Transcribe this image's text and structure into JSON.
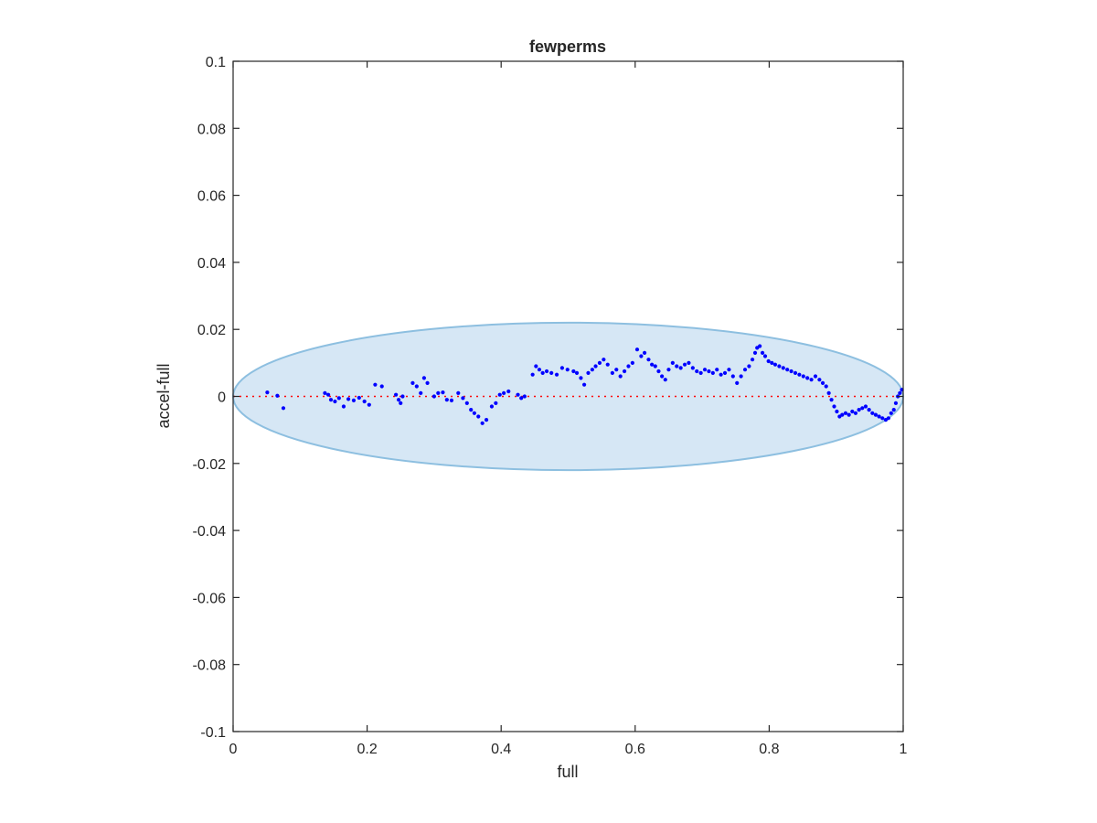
{
  "chart_data": {
    "type": "scatter",
    "title": "fewperms",
    "xlabel": "full",
    "ylabel": "accel-full",
    "xlim": [
      0,
      1
    ],
    "ylim": [
      -0.1,
      0.1
    ],
    "xticks": [
      0,
      0.2,
      0.4,
      0.6,
      0.8,
      1
    ],
    "xtick_labels": [
      "0",
      "0.2",
      "0.4",
      "0.6",
      "0.8",
      "1"
    ],
    "yticks": [
      -0.1,
      -0.08,
      -0.06,
      -0.04,
      -0.02,
      0,
      0.02,
      0.04,
      0.06,
      0.08,
      0.1
    ],
    "ytick_labels": [
      "-0.1",
      "-0.08",
      "-0.06",
      "-0.04",
      "-0.02",
      "0",
      "0.02",
      "0.04",
      "0.06",
      "0.08",
      "0.1"
    ],
    "grid": false,
    "reference_line": {
      "y": 0,
      "color": "#ff0000",
      "style": "dotted"
    },
    "ellipse": {
      "center": [
        0.5,
        0
      ],
      "radius_x": 0.5,
      "radius_y": 0.022,
      "fill": "#d6e7f5",
      "stroke": "#8dbfe0"
    },
    "marker_color": "#0000ff",
    "points": [
      [
        0.051,
        0.0012
      ],
      [
        0.066,
        0.0002
      ],
      [
        0.075,
        -0.0035
      ],
      [
        0.137,
        0.001
      ],
      [
        0.142,
        0.0005
      ],
      [
        0.146,
        -0.001
      ],
      [
        0.152,
        -0.0015
      ],
      [
        0.158,
        -0.0005
      ],
      [
        0.165,
        -0.003
      ],
      [
        0.172,
        -0.0008
      ],
      [
        0.18,
        -0.0012
      ],
      [
        0.188,
        -0.0004
      ],
      [
        0.196,
        -0.0015
      ],
      [
        0.203,
        -0.0025
      ],
      [
        0.212,
        0.0035
      ],
      [
        0.222,
        0.003
      ],
      [
        0.243,
        0.0005
      ],
      [
        0.247,
        -0.001
      ],
      [
        0.25,
        -0.002
      ],
      [
        0.253,
        0.0
      ],
      [
        0.268,
        0.004
      ],
      [
        0.274,
        0.003
      ],
      [
        0.28,
        0.001
      ],
      [
        0.285,
        0.0055
      ],
      [
        0.29,
        0.004
      ],
      [
        0.3,
        0.0
      ],
      [
        0.306,
        0.001
      ],
      [
        0.313,
        0.0012
      ],
      [
        0.319,
        -0.001
      ],
      [
        0.326,
        -0.0012
      ],
      [
        0.336,
        0.001
      ],
      [
        0.343,
        -0.0005
      ],
      [
        0.349,
        -0.002
      ],
      [
        0.355,
        -0.004
      ],
      [
        0.36,
        -0.005
      ],
      [
        0.366,
        -0.006
      ],
      [
        0.372,
        -0.008
      ],
      [
        0.378,
        -0.007
      ],
      [
        0.386,
        -0.003
      ],
      [
        0.392,
        -0.002
      ],
      [
        0.398,
        0.0005
      ],
      [
        0.404,
        0.001
      ],
      [
        0.411,
        0.0015
      ],
      [
        0.425,
        0.0005
      ],
      [
        0.43,
        -0.0005
      ],
      [
        0.435,
        0.0
      ],
      [
        0.447,
        0.0065
      ],
      [
        0.452,
        0.009
      ],
      [
        0.457,
        0.008
      ],
      [
        0.462,
        0.007
      ],
      [
        0.468,
        0.0075
      ],
      [
        0.475,
        0.007
      ],
      [
        0.483,
        0.0065
      ],
      [
        0.491,
        0.0085
      ],
      [
        0.499,
        0.008
      ],
      [
        0.508,
        0.0075
      ],
      [
        0.513,
        0.007
      ],
      [
        0.519,
        0.0055
      ],
      [
        0.524,
        0.0035
      ],
      [
        0.53,
        0.007
      ],
      [
        0.536,
        0.008
      ],
      [
        0.541,
        0.009
      ],
      [
        0.547,
        0.01
      ],
      [
        0.553,
        0.011
      ],
      [
        0.559,
        0.0095
      ],
      [
        0.566,
        0.007
      ],
      [
        0.572,
        0.008
      ],
      [
        0.578,
        0.006
      ],
      [
        0.584,
        0.0075
      ],
      [
        0.59,
        0.009
      ],
      [
        0.596,
        0.01
      ],
      [
        0.603,
        0.014
      ],
      [
        0.609,
        0.012
      ],
      [
        0.614,
        0.013
      ],
      [
        0.62,
        0.011
      ],
      [
        0.625,
        0.0095
      ],
      [
        0.63,
        0.009
      ],
      [
        0.635,
        0.0075
      ],
      [
        0.64,
        0.006
      ],
      [
        0.645,
        0.005
      ],
      [
        0.65,
        0.008
      ],
      [
        0.656,
        0.01
      ],
      [
        0.662,
        0.009
      ],
      [
        0.668,
        0.0085
      ],
      [
        0.674,
        0.0095
      ],
      [
        0.68,
        0.01
      ],
      [
        0.686,
        0.0085
      ],
      [
        0.692,
        0.0075
      ],
      [
        0.698,
        0.007
      ],
      [
        0.704,
        0.008
      ],
      [
        0.71,
        0.0075
      ],
      [
        0.716,
        0.007
      ],
      [
        0.722,
        0.008
      ],
      [
        0.728,
        0.0065
      ],
      [
        0.734,
        0.007
      ],
      [
        0.74,
        0.008
      ],
      [
        0.746,
        0.006
      ],
      [
        0.752,
        0.004
      ],
      [
        0.758,
        0.006
      ],
      [
        0.764,
        0.008
      ],
      [
        0.77,
        0.009
      ],
      [
        0.775,
        0.011
      ],
      [
        0.779,
        0.013
      ],
      [
        0.782,
        0.0145
      ],
      [
        0.786,
        0.015
      ],
      [
        0.79,
        0.013
      ],
      [
        0.794,
        0.012
      ],
      [
        0.799,
        0.0105
      ],
      [
        0.804,
        0.01
      ],
      [
        0.809,
        0.0095
      ],
      [
        0.815,
        0.009
      ],
      [
        0.821,
        0.0085
      ],
      [
        0.827,
        0.008
      ],
      [
        0.833,
        0.0075
      ],
      [
        0.839,
        0.007
      ],
      [
        0.845,
        0.0065
      ],
      [
        0.851,
        0.006
      ],
      [
        0.857,
        0.0055
      ],
      [
        0.863,
        0.005
      ],
      [
        0.869,
        0.006
      ],
      [
        0.875,
        0.005
      ],
      [
        0.88,
        0.004
      ],
      [
        0.885,
        0.003
      ],
      [
        0.889,
        0.001
      ],
      [
        0.893,
        -0.001
      ],
      [
        0.897,
        -0.003
      ],
      [
        0.901,
        -0.0045
      ],
      [
        0.905,
        -0.006
      ],
      [
        0.909,
        -0.0055
      ],
      [
        0.914,
        -0.005
      ],
      [
        0.919,
        -0.0055
      ],
      [
        0.924,
        -0.0045
      ],
      [
        0.929,
        -0.005
      ],
      [
        0.934,
        -0.004
      ],
      [
        0.939,
        -0.0035
      ],
      [
        0.944,
        -0.003
      ],
      [
        0.949,
        -0.004
      ],
      [
        0.954,
        -0.005
      ],
      [
        0.959,
        -0.0055
      ],
      [
        0.964,
        -0.006
      ],
      [
        0.969,
        -0.0065
      ],
      [
        0.974,
        -0.007
      ],
      [
        0.978,
        -0.0065
      ],
      [
        0.982,
        -0.005
      ],
      [
        0.986,
        -0.004
      ],
      [
        0.989,
        -0.002
      ],
      [
        0.992,
        0.0
      ],
      [
        0.995,
        0.001
      ],
      [
        0.998,
        0.002
      ]
    ]
  }
}
